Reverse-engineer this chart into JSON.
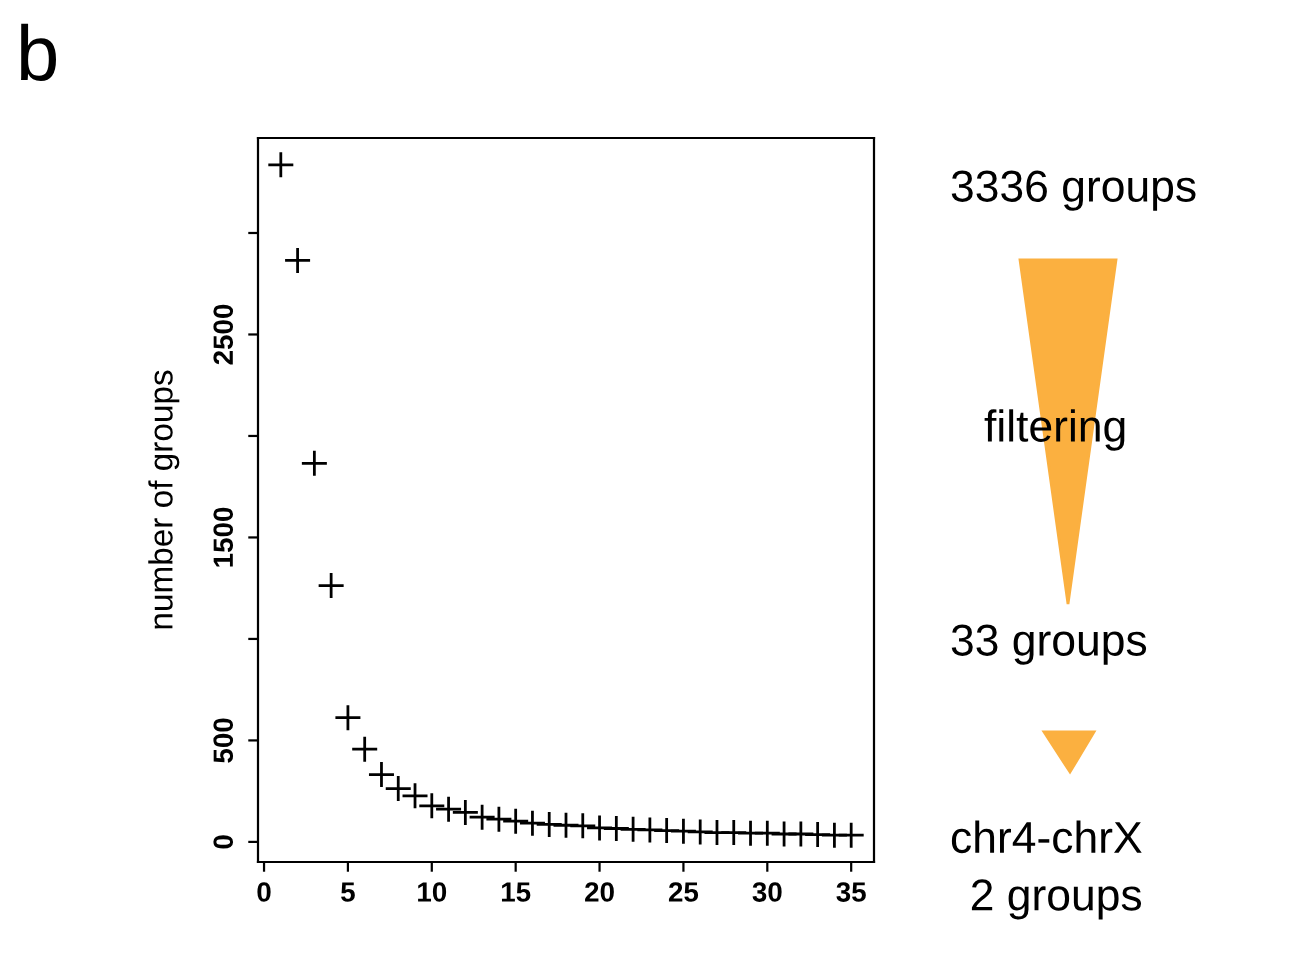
{
  "chart_data": {
    "type": "scatter",
    "title": "b",
    "ylabel": "number of groups",
    "x": [
      1,
      2,
      3,
      4,
      5,
      6,
      7,
      8,
      9,
      10,
      11,
      12,
      13,
      14,
      15,
      16,
      17,
      18,
      19,
      20,
      21,
      22,
      23,
      24,
      25,
      26,
      27,
      28,
      29,
      30,
      31,
      32,
      33,
      34,
      35
    ],
    "values": [
      3336,
      2865,
      1865,
      1263,
      612,
      457,
      332,
      263,
      227,
      178,
      161,
      145,
      122,
      112,
      102,
      92,
      86,
      82,
      79,
      69,
      66,
      62,
      59,
      56,
      53,
      49,
      46,
      46,
      43,
      43,
      39,
      39,
      36,
      33,
      33
    ],
    "color": "#000000",
    "marker": "cross",
    "xlim": [
      -0.36,
      36.36
    ],
    "xticks": [
      0,
      5,
      10,
      15,
      20,
      25,
      30,
      35
    ],
    "ylim": [
      -99,
      3468
    ],
    "yticks": [
      0,
      {
        "value": 500,
        "label": "500"
      },
      {
        "value": 1000,
        "label": null
      },
      1500,
      {
        "value": 2000,
        "label": null
      },
      2500,
      {
        "value": 3000,
        "label": null
      }
    ],
    "grid": false,
    "legend": false,
    "annotations": [
      "3336 groups",
      "filtering",
      "33 groups",
      "chr4-chrX\n2 groups"
    ]
  }
}
